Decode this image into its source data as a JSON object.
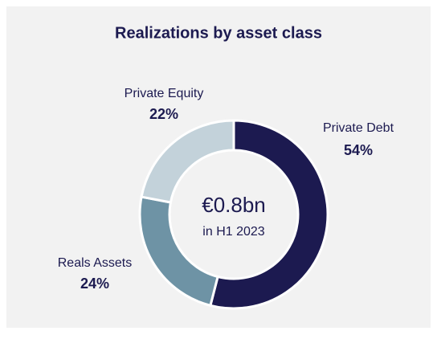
{
  "chart_data": {
    "type": "donut",
    "title": "Realizations by asset class",
    "center_label": "€0.8bn",
    "center_sublabel": "in H1 2023",
    "categories": [
      "Private Debt",
      "Reals Assets",
      "Private Equity"
    ],
    "values": [
      54,
      24,
      22
    ],
    "value_labels": [
      "54%",
      "24%",
      "22%"
    ],
    "colors": [
      "#1c1a50",
      "#6e93a5",
      "#c3d2da"
    ]
  }
}
